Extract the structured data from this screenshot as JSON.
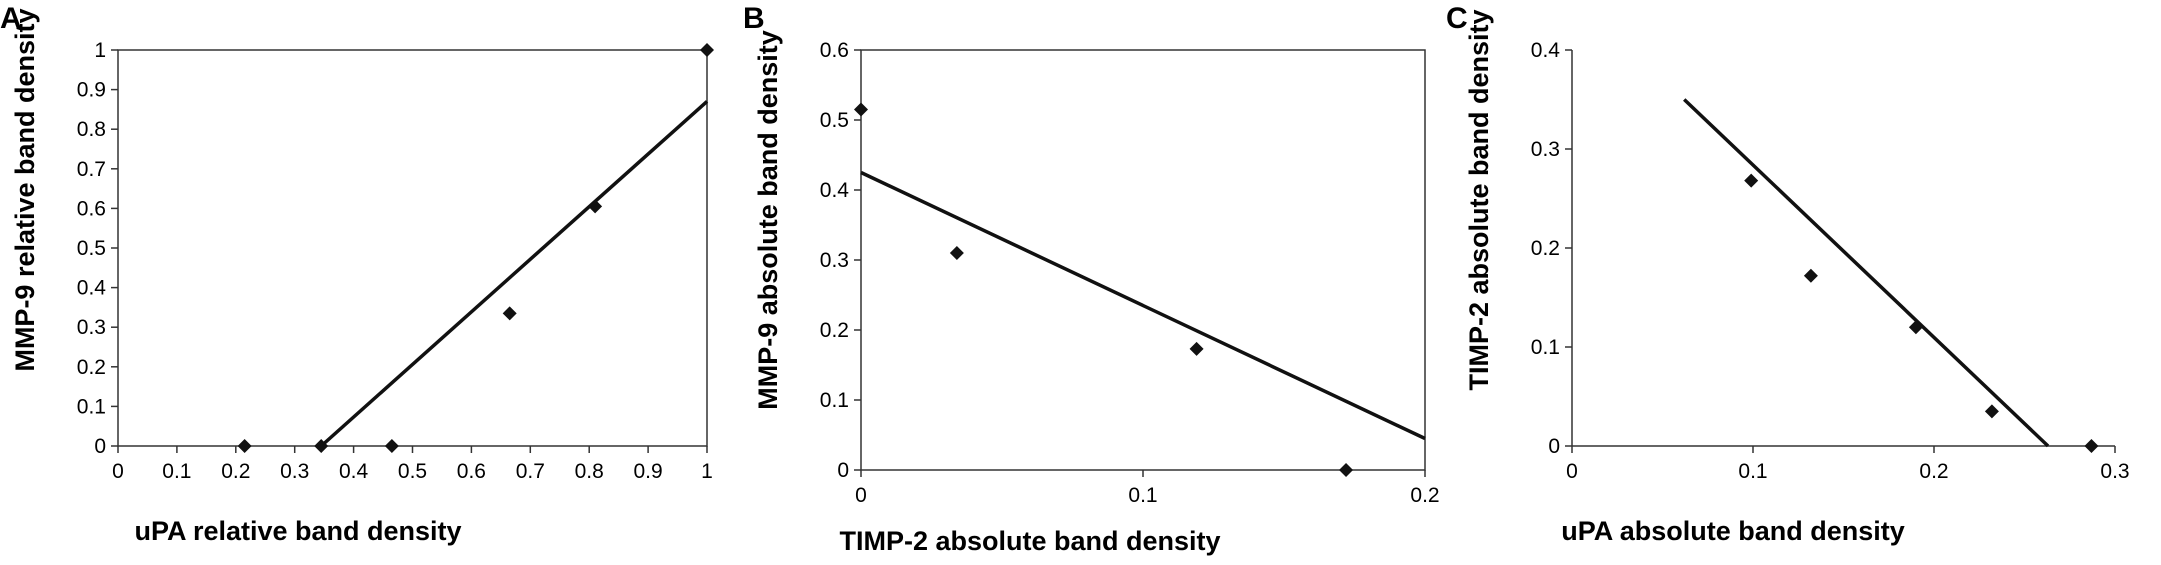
{
  "chart_data": [
    {
      "panel": "A",
      "type": "scatter",
      "xlabel": "uPA relative band density",
      "ylabel": "MMP-9 relative band density",
      "xlim": [
        0,
        1
      ],
      "ylim": [
        0,
        1
      ],
      "xticks": [
        "0",
        "0.1",
        "0.2",
        "0.3",
        "0.4",
        "0.5",
        "0.6",
        "0.7",
        "0.8",
        "0.9",
        "1"
      ],
      "yticks": [
        "0",
        "0.1",
        "0.2",
        "0.3",
        "0.4",
        "0.5",
        "0.6",
        "0.7",
        "0.8",
        "0.9",
        "1"
      ],
      "points": [
        {
          "x": 0.215,
          "y": 0
        },
        {
          "x": 0.345,
          "y": 0
        },
        {
          "x": 0.465,
          "y": 0
        },
        {
          "x": 0.665,
          "y": 0.335
        },
        {
          "x": 0.81,
          "y": 0.605
        },
        {
          "x": 1.0,
          "y": 1.0
        }
      ],
      "trendline": [
        {
          "x": 0.345,
          "y": 0
        },
        {
          "x": 1.0,
          "y": 0.87
        }
      ],
      "grid": false
    },
    {
      "panel": "B",
      "type": "scatter",
      "xlabel": "TIMP-2 absolute band density",
      "ylabel": "MMP-9 absolute band density",
      "xlim": [
        0,
        0.2
      ],
      "ylim": [
        0,
        0.6
      ],
      "xticks": [
        "0",
        "0.1",
        "0.2"
      ],
      "yticks": [
        "0",
        "0.1",
        "0.2",
        "0.3",
        "0.4",
        "0.5",
        "0.6"
      ],
      "points": [
        {
          "x": 0,
          "y": 0.515
        },
        {
          "x": 0.034,
          "y": 0.31
        },
        {
          "x": 0.119,
          "y": 0.173
        },
        {
          "x": 0.172,
          "y": 0
        }
      ],
      "trendline": [
        {
          "x": 0,
          "y": 0.425
        },
        {
          "x": 0.2,
          "y": 0.045
        }
      ],
      "grid": false
    },
    {
      "panel": "C",
      "type": "scatter",
      "xlabel": "uPA absolute band density",
      "ylabel": "TIMP-2 absolute band density",
      "xlim": [
        0,
        0.3
      ],
      "ylim": [
        0,
        0.4
      ],
      "xticks": [
        "0",
        "0.1",
        "0.2",
        "0.3"
      ],
      "yticks": [
        "0",
        "0.1",
        "0.2",
        "0.3",
        "0.4"
      ],
      "points": [
        {
          "x": 0.099,
          "y": 0.268
        },
        {
          "x": 0.132,
          "y": 0.172
        },
        {
          "x": 0.19,
          "y": 0.12
        },
        {
          "x": 0.232,
          "y": 0.035
        },
        {
          "x": 0.287,
          "y": 0
        }
      ],
      "trendline": [
        {
          "x": 0.062,
          "y": 0.35
        },
        {
          "x": 0.263,
          "y": 0
        }
      ],
      "grid": false
    }
  ]
}
